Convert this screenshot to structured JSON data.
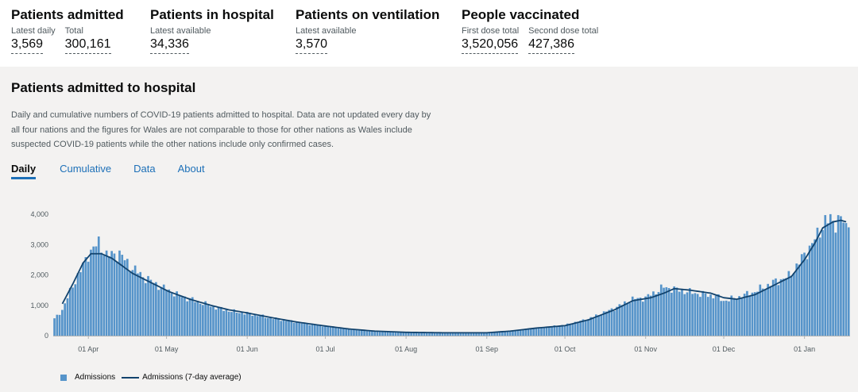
{
  "headlines": [
    {
      "title": "Patients admitted",
      "metrics": [
        {
          "label": "Latest daily",
          "value": "3,569"
        },
        {
          "label": "Total",
          "value": "300,161"
        }
      ]
    },
    {
      "title": "Patients in hospital",
      "metrics": [
        {
          "label": "Latest available",
          "value": "34,336"
        }
      ]
    },
    {
      "title": "Patients on ventilation",
      "metrics": [
        {
          "label": "Latest available",
          "value": "3,570"
        }
      ]
    },
    {
      "title": "People vaccinated",
      "metrics": [
        {
          "label": "First dose total",
          "value": "3,520,056"
        },
        {
          "label": "Second dose total",
          "value": "427,386"
        }
      ]
    }
  ],
  "card": {
    "title": "Patients admitted to hospital",
    "description": "Daily and cumulative numbers of COVID-19 patients admitted to hospital. Data are not updated every day by all four nations and the figures for Wales are not comparable to those for other nations as Wales include suspected COVID-19 patients while the other nations include only confirmed cases.",
    "tabs": [
      "Daily",
      "Cumulative",
      "Data",
      "About"
    ],
    "active_tab": "Daily"
  },
  "colors": {
    "bar": "#5694ca",
    "line": "#12436d",
    "tab_active": "#1d70b8"
  },
  "chart_data": {
    "type": "bar",
    "start_date": "2020-03-19",
    "end_date": "2021-01-18",
    "x_tick_labels": [
      "01 Apr",
      "01 May",
      "01 Jun",
      "01 Jul",
      "01 Aug",
      "01 Sep",
      "01 Oct",
      "01 Nov",
      "01 Dec",
      "01 Jan"
    ],
    "y_ticks": [
      0,
      1000,
      2000,
      3000,
      4000
    ],
    "y_tick_labels": [
      "0",
      "1,000",
      "2,000",
      "3,000",
      "4,000"
    ],
    "ylim": [
      0,
      4300
    ],
    "grid": false,
    "legend_position": "bottom-left",
    "series": [
      {
        "name": "Admissions",
        "kind": "bar",
        "anchors": [
          [
            "2020-03-19",
            550
          ],
          [
            "2020-03-22",
            850
          ],
          [
            "2020-03-26",
            1650
          ],
          [
            "2020-03-30",
            2300
          ],
          [
            "2020-04-01",
            2700
          ],
          [
            "2020-04-05",
            3050
          ],
          [
            "2020-04-08",
            2650
          ],
          [
            "2020-04-13",
            2700
          ],
          [
            "2020-04-17",
            2300
          ],
          [
            "2020-04-22",
            1950
          ],
          [
            "2020-04-28",
            1650
          ],
          [
            "2020-05-05",
            1350
          ],
          [
            "2020-05-12",
            1150
          ],
          [
            "2020-05-19",
            950
          ],
          [
            "2020-05-26",
            800
          ],
          [
            "2020-06-02",
            720
          ],
          [
            "2020-06-09",
            600
          ],
          [
            "2020-06-16",
            500
          ],
          [
            "2020-06-23",
            400
          ],
          [
            "2020-06-30",
            330
          ],
          [
            "2020-07-07",
            250
          ],
          [
            "2020-07-14",
            180
          ],
          [
            "2020-07-21",
            140
          ],
          [
            "2020-07-31",
            110
          ],
          [
            "2020-08-15",
            100
          ],
          [
            "2020-09-01",
            100
          ],
          [
            "2020-09-10",
            150
          ],
          [
            "2020-09-20",
            250
          ],
          [
            "2020-10-01",
            350
          ],
          [
            "2020-10-10",
            550
          ],
          [
            "2020-10-20",
            900
          ],
          [
            "2020-10-27",
            1200
          ],
          [
            "2020-11-01",
            1250
          ],
          [
            "2020-11-08",
            1600
          ],
          [
            "2020-11-14",
            1500
          ],
          [
            "2020-11-20",
            1400
          ],
          [
            "2020-11-28",
            1300
          ],
          [
            "2020-12-01",
            1150
          ],
          [
            "2020-12-06",
            1250
          ],
          [
            "2020-12-13",
            1450
          ],
          [
            "2020-12-20",
            1750
          ],
          [
            "2020-12-26",
            1950
          ],
          [
            "2021-01-01",
            2650
          ],
          [
            "2021-01-06",
            3300
          ],
          [
            "2021-01-09",
            3800
          ],
          [
            "2021-01-13",
            3750
          ],
          [
            "2021-01-15",
            3900
          ],
          [
            "2021-01-17",
            3500
          ],
          [
            "2021-01-18",
            3569
          ]
        ]
      },
      {
        "name": "Admissions (7-day average)",
        "kind": "line",
        "anchors": [
          [
            "2020-03-22",
            1050
          ],
          [
            "2020-03-26",
            1700
          ],
          [
            "2020-03-30",
            2400
          ],
          [
            "2020-04-02",
            2700
          ],
          [
            "2020-04-06",
            2700
          ],
          [
            "2020-04-10",
            2550
          ],
          [
            "2020-04-14",
            2300
          ],
          [
            "2020-04-18",
            2050
          ],
          [
            "2020-04-25",
            1750
          ],
          [
            "2020-05-02",
            1450
          ],
          [
            "2020-05-10",
            1200
          ],
          [
            "2020-05-18",
            1000
          ],
          [
            "2020-05-25",
            850
          ],
          [
            "2020-06-01",
            750
          ],
          [
            "2020-06-10",
            600
          ],
          [
            "2020-06-20",
            450
          ],
          [
            "2020-06-30",
            330
          ],
          [
            "2020-07-10",
            220
          ],
          [
            "2020-07-20",
            150
          ],
          [
            "2020-08-01",
            110
          ],
          [
            "2020-08-15",
            95
          ],
          [
            "2020-09-01",
            95
          ],
          [
            "2020-09-10",
            150
          ],
          [
            "2020-09-20",
            250
          ],
          [
            "2020-10-01",
            330
          ],
          [
            "2020-10-10",
            520
          ],
          [
            "2020-10-20",
            850
          ],
          [
            "2020-10-27",
            1150
          ],
          [
            "2020-11-03",
            1250
          ],
          [
            "2020-11-08",
            1400
          ],
          [
            "2020-11-12",
            1550
          ],
          [
            "2020-11-18",
            1500
          ],
          [
            "2020-11-26",
            1400
          ],
          [
            "2020-12-01",
            1250
          ],
          [
            "2020-12-06",
            1200
          ],
          [
            "2020-12-13",
            1350
          ],
          [
            "2020-12-20",
            1650
          ],
          [
            "2020-12-27",
            1950
          ],
          [
            "2021-01-01",
            2500
          ],
          [
            "2021-01-05",
            3050
          ],
          [
            "2021-01-08",
            3550
          ],
          [
            "2021-01-12",
            3750
          ],
          [
            "2021-01-15",
            3800
          ],
          [
            "2021-01-17",
            3750
          ]
        ]
      }
    ]
  }
}
